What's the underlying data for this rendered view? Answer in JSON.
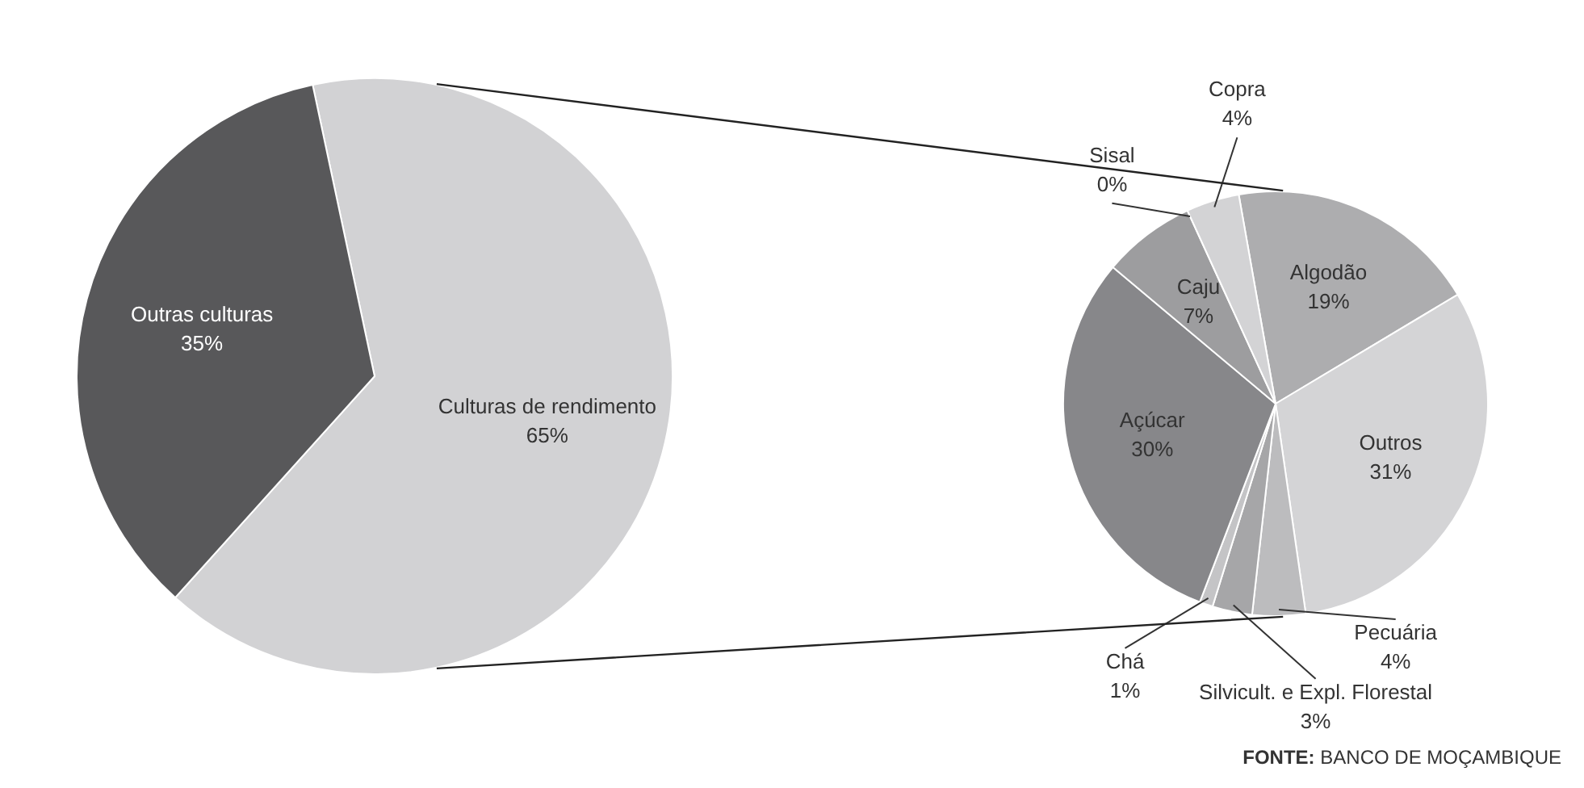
{
  "chart_data": [
    {
      "type": "pie",
      "categories": [
        "Culturas de rendimento",
        "Outras culturas"
      ],
      "values": [
        65,
        35
      ],
      "colors": [
        "#d2d2d4",
        "#58585a"
      ],
      "value_labels": [
        "65%",
        "35%"
      ]
    },
    {
      "type": "pie",
      "categories": [
        "Algodão",
        "Outros",
        "Pecuária",
        "Silvicult. e Expl. Florestal",
        "Chá",
        "Açúcar",
        "Caju",
        "Sisal",
        "Copra"
      ],
      "values": [
        19,
        31,
        4,
        3,
        1,
        30,
        7,
        0,
        4
      ],
      "colors": [
        "#adadaf",
        "#d4d4d6",
        "#bcbcbe",
        "#a6a6a8",
        "#c4c4c6",
        "#87878a",
        "#9d9d9f",
        "#b0b0b2",
        "#d3d3d5"
      ],
      "value_labels": [
        "19%",
        "31%",
        "4%",
        "3%",
        "1%",
        "30%",
        "7%",
        "0%",
        "4%"
      ],
      "annotations": [
        "FONTE: BANCO DE MOÇAMBIQUE"
      ]
    }
  ]
}
